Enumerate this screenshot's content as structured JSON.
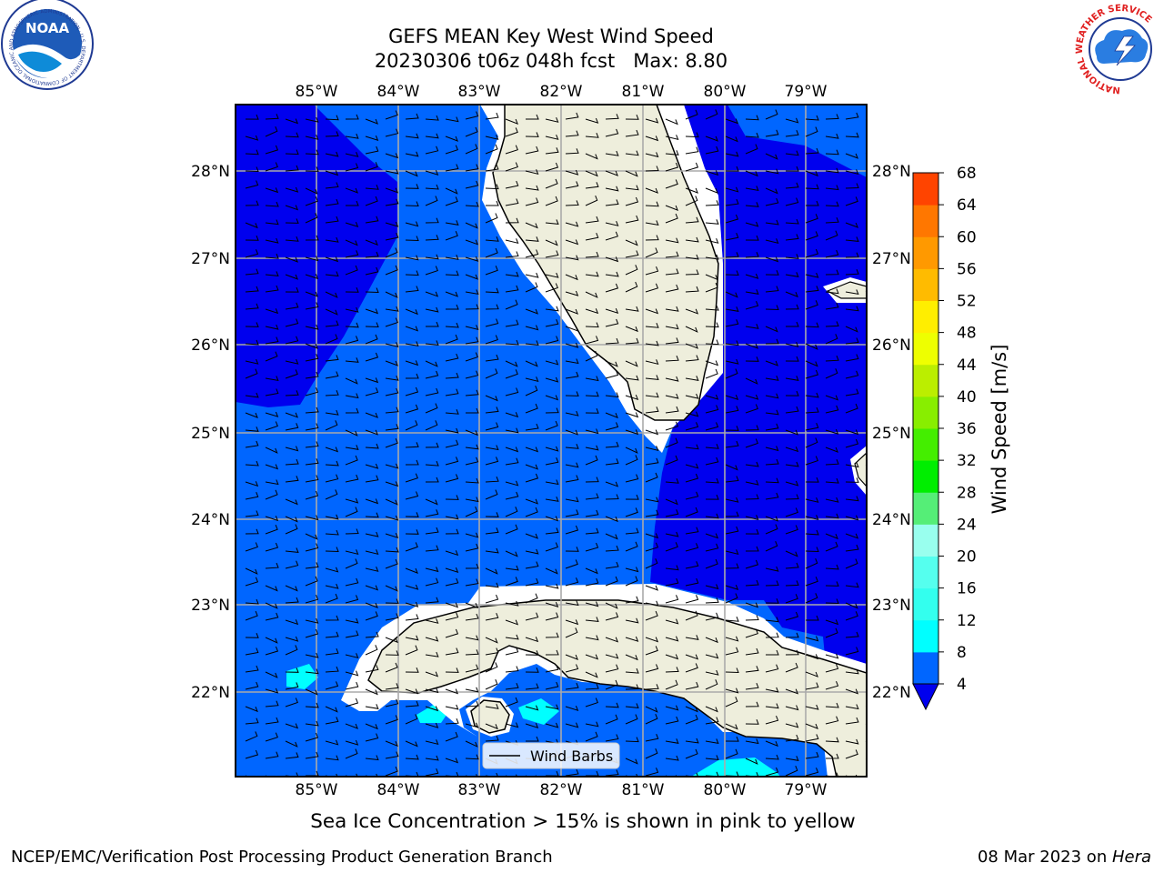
{
  "header": {
    "title_line1": "GEFS MEAN Key West Wind Speed",
    "title_line2": "20230306 t06z 048h fcst   Max: 8.80"
  },
  "logos": {
    "left": {
      "name": "noaa-logo",
      "text": "NOAA",
      "ring_text": "NATIONAL OCEANIC AND ATMOSPHERIC ADMINISTRATION · U.S. DEPARTMENT OF COMMERCE"
    },
    "right": {
      "name": "nws-logo",
      "ring_text": "NATIONAL WEATHER SERVICE"
    }
  },
  "map": {
    "lon_labels": [
      "85°W",
      "84°W",
      "83°W",
      "82°W",
      "81°W",
      "80°W",
      "79°W"
    ],
    "lat_labels": [
      "28°N",
      "27°N",
      "26°N",
      "25°N",
      "24°N",
      "23°N",
      "22°N"
    ],
    "legend_label": "Wind Barbs",
    "colors": {
      "water_4_8": "#0066ff",
      "water_lt4": "#0000ee",
      "water_8_12": "#00ffff",
      "land": "#eeeedc",
      "gridline": "#aaaaaa"
    }
  },
  "colorbar": {
    "label": "Wind Speed [m/s]",
    "ticks": [
      "4",
      "8",
      "12",
      "16",
      "20",
      "24",
      "28",
      "32",
      "36",
      "40",
      "44",
      "48",
      "52",
      "56",
      "60",
      "64",
      "68"
    ],
    "colors": [
      "#0066ff",
      "#00ffff",
      "#33ffee",
      "#55ffee",
      "#99ffee",
      "#55ee77",
      "#00ee00",
      "#44ee00",
      "#88ee00",
      "#bbee00",
      "#eeff00",
      "#ffee00",
      "#ffbb00",
      "#ff9900",
      "#ff7700",
      "#ff4400",
      "#ff0000"
    ],
    "extend_color": "#0000ee"
  },
  "captions": {
    "ice": "Sea Ice Concentration > 15% is shown in pink to yellow",
    "org": "NCEP/EMC/Verification Post Processing Product Generation Branch",
    "date": "08 Mar 2023 on ",
    "host": "Hera"
  }
}
